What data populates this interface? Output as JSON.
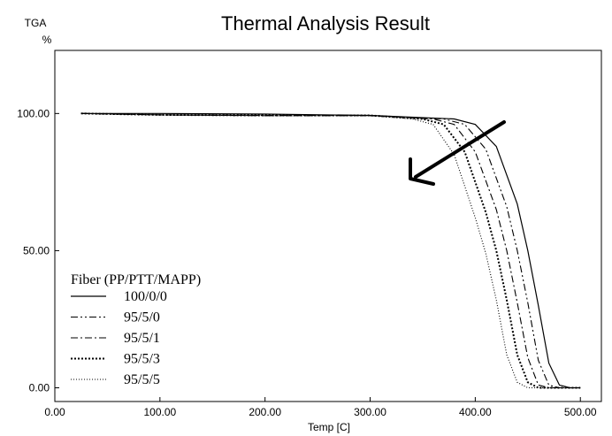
{
  "chart_data": {
    "type": "line",
    "title": "Thermal Analysis Result",
    "ylabel_top": "TGA",
    "ylabel_unit": "%",
    "xlabel": "Temp [C]",
    "xlim": [
      0,
      520
    ],
    "ylim": [
      -5,
      123
    ],
    "x_ticks": [
      0,
      100,
      200,
      300,
      400,
      500
    ],
    "x_tick_labels": [
      "0.00",
      "100.00",
      "200.00",
      "300.00",
      "400.00",
      "500.00"
    ],
    "y_ticks": [
      0,
      50,
      100
    ],
    "y_tick_labels": [
      "0.00",
      "50.00",
      "100.00"
    ],
    "grid": false,
    "legend": {
      "title": "Fiber (PP/PTT/MAPP)",
      "position": "bottom-left"
    },
    "series": [
      {
        "name": "100/0/0",
        "style": "solid",
        "x": [
          25,
          100,
          200,
          300,
          380,
          400,
          420,
          440,
          450,
          460,
          470,
          480,
          490,
          500
        ],
        "values": [
          100,
          100,
          99.8,
          99.3,
          98,
          96,
          88,
          67,
          50,
          30,
          9,
          1,
          0,
          0
        ]
      },
      {
        "name": "95/5/0",
        "style": "dash-dot-dot",
        "x": [
          25,
          100,
          200,
          300,
          370,
          390,
          410,
          430,
          440,
          450,
          460,
          470,
          480,
          500
        ],
        "values": [
          100,
          99.5,
          99.2,
          99.2,
          98,
          96,
          87,
          66,
          50,
          31,
          10,
          1,
          0,
          0
        ]
      },
      {
        "name": "95/5/1",
        "style": "dash-dot",
        "x": [
          25,
          100,
          200,
          300,
          360,
          380,
          400,
          420,
          430,
          440,
          450,
          460,
          470,
          500
        ],
        "values": [
          100,
          99.5,
          99.3,
          99.3,
          98,
          96,
          86,
          65,
          50,
          31,
          11,
          1,
          0,
          0
        ]
      },
      {
        "name": "95/5/3",
        "style": "dotted-bold",
        "x": [
          25,
          100,
          200,
          300,
          350,
          370,
          390,
          410,
          420,
          430,
          440,
          450,
          460,
          500
        ],
        "values": [
          100,
          99.5,
          99.3,
          99.3,
          98,
          96,
          86,
          64,
          50,
          32,
          12,
          2,
          0,
          0
        ]
      },
      {
        "name": "95/5/5",
        "style": "dotted",
        "x": [
          25,
          100,
          200,
          300,
          340,
          360,
          380,
          400,
          410,
          420,
          430,
          440,
          450,
          500
        ],
        "values": [
          100,
          99.5,
          99.2,
          99.2,
          98,
          96,
          85,
          62,
          49,
          32,
          12,
          2,
          0,
          0
        ]
      }
    ]
  }
}
